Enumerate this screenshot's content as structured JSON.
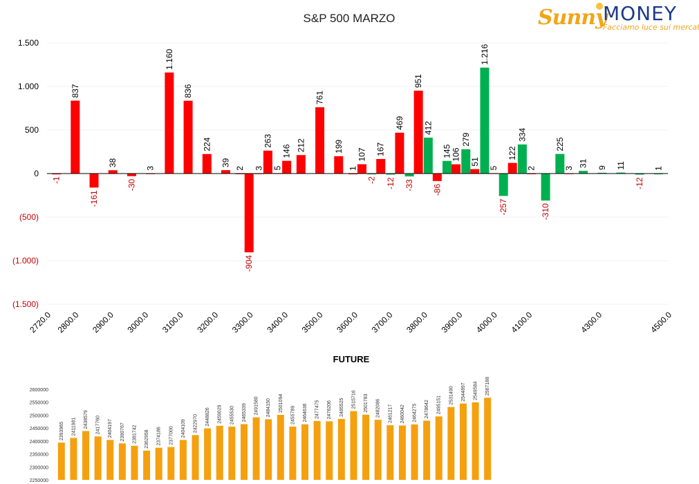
{
  "logo": {
    "word1": "Sunny",
    "word2": "MONEY",
    "tagline": "Facciamo luce sui mercati",
    "colors": {
      "sunny": "#f2a51a",
      "money": "#1a3a8a"
    }
  },
  "chart_data": [
    {
      "type": "bar",
      "title": "S&P 500 MARZO",
      "xlabel": "",
      "ylabel": "",
      "ylim": [
        -1500,
        1500
      ],
      "yticks": [
        {
          "value": 1500,
          "label": "1.500"
        },
        {
          "value": 1000,
          "label": "1.000"
        },
        {
          "value": 500,
          "label": "500"
        },
        {
          "value": 0,
          "label": "0"
        },
        {
          "value": -500,
          "label": "(500)"
        },
        {
          "value": -1000,
          "label": "(1.000)"
        },
        {
          "value": -1500,
          "label": "(1.500)"
        }
      ],
      "xticks": [
        {
          "value": 2720,
          "label": "2720.0"
        },
        {
          "value": 2800,
          "label": "2800.0"
        },
        {
          "value": 2900,
          "label": "2900.0"
        },
        {
          "value": 3000,
          "label": "3000.0"
        },
        {
          "value": 3100,
          "label": "3100.0"
        },
        {
          "value": 3200,
          "label": "3200.0"
        },
        {
          "value": 3300,
          "label": "3300.0"
        },
        {
          "value": 3400,
          "label": "3400.0"
        },
        {
          "value": 3500,
          "label": "3500.0"
        },
        {
          "value": 3600,
          "label": "3600.0"
        },
        {
          "value": 3700,
          "label": "3700.0"
        },
        {
          "value": 3800,
          "label": "3800.0"
        },
        {
          "value": 3900,
          "label": "3900.0"
        },
        {
          "value": 4000,
          "label": "4000.0"
        },
        {
          "value": 4100,
          "label": "4100.0"
        },
        {
          "value": 4300,
          "label": "4300.0"
        },
        {
          "value": 4500,
          "label": "4500.0"
        }
      ],
      "grid": true,
      "colors": {
        "red": "#ff0000",
        "green": "#00b050",
        "negative_label": "#c00000",
        "positive_label": "#000000",
        "grid": "#f0f0f0"
      },
      "bars": [
        {
          "pos": 0,
          "value": -1,
          "label": "-1",
          "color": "red"
        },
        {
          "pos": 1,
          "value": 837,
          "label": "837",
          "color": "red"
        },
        {
          "pos": 2,
          "value": -161,
          "label": "-161",
          "color": "red"
        },
        {
          "pos": 3,
          "value": 38,
          "label": "38",
          "color": "red"
        },
        {
          "pos": 4,
          "value": -30,
          "label": "-30",
          "color": "red"
        },
        {
          "pos": 5,
          "value": 3,
          "label": "3",
          "color": "red"
        },
        {
          "pos": 6,
          "value": 1160,
          "label": "1.160",
          "color": "red"
        },
        {
          "pos": 7,
          "value": 836,
          "label": "836",
          "color": "red"
        },
        {
          "pos": 8,
          "value": 224,
          "label": "224",
          "color": "red"
        },
        {
          "pos": 9,
          "value": 39,
          "label": "39",
          "color": "red"
        },
        {
          "pos": 10,
          "value": 2,
          "label": "2",
          "color": "red"
        },
        {
          "pos": 10,
          "value": -904,
          "label": "-904",
          "color": "red"
        },
        {
          "pos": 11,
          "value": 3,
          "label": "3",
          "color": "red"
        },
        {
          "pos": 11,
          "value": 263,
          "label": "263",
          "color": "red"
        },
        {
          "pos": 12,
          "value": 5,
          "label": "5",
          "color": "red"
        },
        {
          "pos": 12,
          "value": 146,
          "label": "146",
          "color": "red"
        },
        {
          "pos": 13,
          "value": 212,
          "label": "212",
          "color": "red"
        },
        {
          "pos": 14,
          "value": 761,
          "label": "761",
          "color": "red"
        },
        {
          "pos": 15,
          "value": 199,
          "label": "199",
          "color": "red"
        },
        {
          "pos": 16,
          "value": 1,
          "label": "1",
          "color": "red"
        },
        {
          "pos": 16,
          "value": 107,
          "label": "107",
          "color": "red"
        },
        {
          "pos": 17,
          "value": -2,
          "label": "-2",
          "color": "green"
        },
        {
          "pos": 17,
          "value": 167,
          "label": "167",
          "color": "red"
        },
        {
          "pos": 18,
          "value": -12,
          "label": "-12",
          "color": "green"
        },
        {
          "pos": 18,
          "value": 469,
          "label": "469",
          "color": "red"
        },
        {
          "pos": 19,
          "value": -33,
          "label": "-33",
          "color": "green"
        },
        {
          "pos": 19,
          "value": 951,
          "label": "951",
          "color": "red"
        },
        {
          "pos": 20,
          "value": 412,
          "label": "412",
          "color": "green"
        },
        {
          "pos": 20,
          "value": -86,
          "label": "-86",
          "color": "red"
        },
        {
          "pos": 21,
          "value": 145,
          "label": "145",
          "color": "green"
        },
        {
          "pos": 21,
          "value": 106,
          "label": "106",
          "color": "red"
        },
        {
          "pos": 22,
          "value": 279,
          "label": "279",
          "color": "green"
        },
        {
          "pos": 22,
          "value": 51,
          "label": "51",
          "color": "red"
        },
        {
          "pos": 23,
          "value": 1216,
          "label": "1.216",
          "color": "green"
        },
        {
          "pos": 23,
          "value": 5,
          "label": "5",
          "color": "red"
        },
        {
          "pos": 24,
          "value": -257,
          "label": "-257",
          "color": "green"
        },
        {
          "pos": 24,
          "value": 122,
          "label": "122",
          "color": "red"
        },
        {
          "pos": 25,
          "value": 334,
          "label": "334",
          "color": "green"
        },
        {
          "pos": 25,
          "value": 2,
          "label": "2",
          "color": "red"
        },
        {
          "pos": 26,
          "value": -310,
          "label": "-310",
          "color": "green"
        },
        {
          "pos": 27,
          "value": 225,
          "label": "225",
          "color": "green"
        },
        {
          "pos": 27,
          "value": 3,
          "label": "3",
          "color": "red"
        },
        {
          "pos": 28,
          "value": 31,
          "label": "31",
          "color": "green"
        },
        {
          "pos": 29,
          "value": 9,
          "label": "9",
          "color": "green"
        },
        {
          "pos": 30,
          "value": 11,
          "label": "11",
          "color": "green"
        },
        {
          "pos": 31,
          "value": -12,
          "label": "-12",
          "color": "green"
        },
        {
          "pos": 32,
          "value": 1,
          "label": "1",
          "color": "green"
        }
      ]
    },
    {
      "type": "bar",
      "title": "FUTURE",
      "xlabel": "",
      "ylabel": "",
      "ylim": [
        2250000,
        2600000
      ],
      "yticks": [
        2600000,
        2550000,
        2500000,
        2450000,
        2400000,
        2350000,
        2300000,
        2250000
      ],
      "bar_color": "#f5a00f",
      "values": [
        2393965,
        2411981,
        2438579,
        2417760,
        2404197,
        2390767,
        2381742,
        2362958,
        2374186,
        2377000,
        2404109,
        2422970,
        2448826,
        2459029,
        2455530,
        2465339,
        2491580,
        2484150,
        2501094,
        2455789,
        2464636,
        2477475,
        2476206,
        2485525,
        2515716,
        2501783,
        2482086,
        2461217,
        2460042,
        2464275,
        2478642,
        2495151,
        2531490,
        2544897,
        2549584,
        2567188
      ]
    }
  ]
}
